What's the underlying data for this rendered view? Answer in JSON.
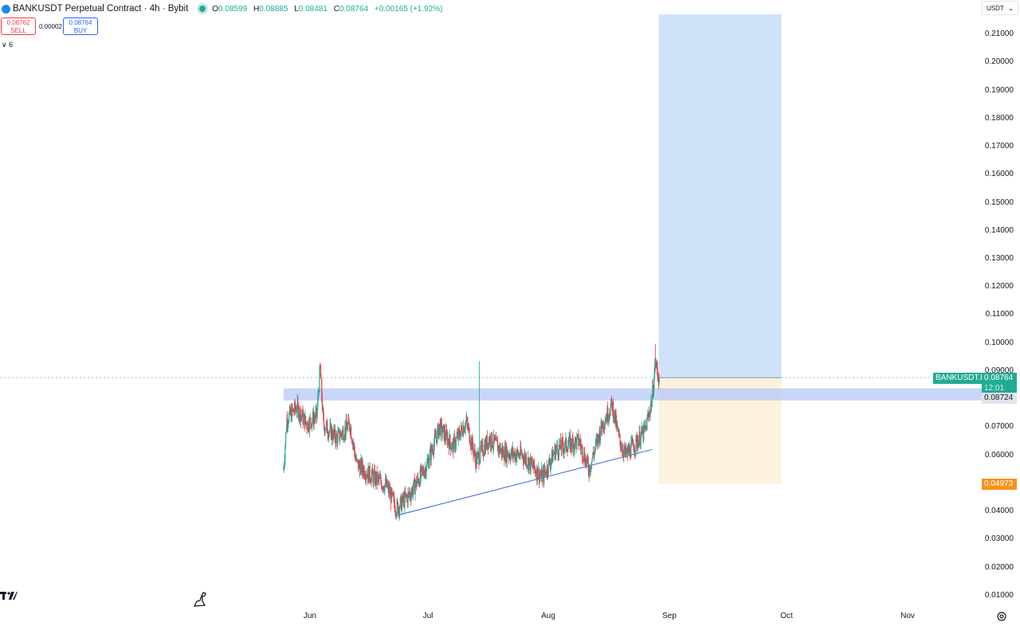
{
  "header": {
    "title": "BANKUSDT Perpetual Contract · 4h · Bybit",
    "open_k": "O",
    "open": "0.08599",
    "high_k": "H",
    "high": "0.08885",
    "low_k": "L",
    "low": "0.08481",
    "close_k": "C",
    "close": "0.08764",
    "change": "+0.00165 (+1.92%)"
  },
  "trade": {
    "sell_price": "0.08762",
    "sell_label": "SELL",
    "spread": "0.00002",
    "buy_price": "0.08764",
    "buy_label": "BUY"
  },
  "indicators_toggle": "6",
  "currency": "USDT",
  "axis": {
    "price_labels": [
      "0.21000",
      "0.20000",
      "0.19000",
      "0.18000",
      "0.17000",
      "0.16000",
      "0.15000",
      "0.14000",
      "0.13000",
      "0.12000",
      "0.11000",
      "0.10000",
      "0.09000",
      "0.07000",
      "0.06000",
      "0.04000",
      "0.03000",
      "0.02000",
      "0.01000"
    ],
    "time_labels": [
      "Jun",
      "Jul",
      "Aug",
      "Sep",
      "Oct",
      "Nov"
    ]
  },
  "tags": {
    "symbol": "BANKUSDT.P",
    "last_price": "0.08764",
    "countdown": "12:01",
    "zone_price": "0.08724",
    "stop_price": "0.04973"
  },
  "colors": {
    "up": "#22ab94",
    "down": "#f23645",
    "zone": "#b6c8f5",
    "target": "#cfe2fa",
    "stop": "#fbf1dd",
    "trendline": "#3d5bd9",
    "stop_tag": "#f7931a"
  },
  "chart_data": {
    "type": "candlestick",
    "timeframe": "4h",
    "approx_close_path": [
      [
        "2025-05-13",
        0.055
      ],
      [
        "2025-05-14",
        0.073
      ],
      [
        "2025-05-17",
        0.077
      ],
      [
        "2025-05-20",
        0.071
      ],
      [
        "2025-05-23",
        0.074
      ],
      [
        "2025-05-24",
        0.091
      ],
      [
        "2025-05-25",
        0.071
      ],
      [
        "2025-05-29",
        0.066
      ],
      [
        "2025-06-02",
        0.071
      ],
      [
        "2025-06-04",
        0.057
      ],
      [
        "2025-06-08",
        0.053
      ],
      [
        "2025-06-13",
        0.049
      ],
      [
        "2025-06-16",
        0.041
      ],
      [
        "2025-06-20",
        0.046
      ],
      [
        "2025-06-25",
        0.056
      ],
      [
        "2025-06-29",
        0.07
      ],
      [
        "2025-07-03",
        0.063
      ],
      [
        "2025-07-07",
        0.072
      ],
      [
        "2025-07-10",
        0.058
      ],
      [
        "2025-07-14",
        0.066
      ],
      [
        "2025-07-18",
        0.061
      ],
      [
        "2025-07-24",
        0.06
      ],
      [
        "2025-07-30",
        0.052
      ],
      [
        "2025-08-03",
        0.062
      ],
      [
        "2025-08-07",
        0.064
      ],
      [
        "2025-08-10",
        0.065
      ],
      [
        "2025-08-13",
        0.055
      ],
      [
        "2025-08-17",
        0.071
      ],
      [
        "2025-08-20",
        0.078
      ],
      [
        "2025-08-22",
        0.066
      ],
      [
        "2025-08-24",
        0.06
      ],
      [
        "2025-08-27",
        0.064
      ],
      [
        "2025-08-30",
        0.069
      ],
      [
        "2025-09-01",
        0.08
      ],
      [
        "2025-09-02",
        0.093
      ],
      [
        "2025-09-03",
        0.0876
      ]
    ],
    "spikes": [
      {
        "date": "2025-05-24",
        "high": 0.0915
      },
      {
        "date": "2025-07-11",
        "high": 0.0935
      },
      {
        "date": "2025-09-02",
        "high": 0.0995
      }
    ],
    "last": {
      "open": 0.08599,
      "high": 0.08885,
      "low": 0.08481,
      "close": 0.08764
    },
    "resistance_zone": [
      0.0795,
      0.0838
    ],
    "trendline": {
      "from": [
        "2025-06-16",
        0.0385
      ],
      "to": [
        "2025-09-01",
        0.062
      ]
    },
    "long_position": {
      "entry": 0.0876,
      "target": 0.217,
      "stop": 0.04973,
      "start": "2025-09-03",
      "end": "2025-10-10"
    },
    "ylim": [
      0.0,
      0.217
    ],
    "xlim": [
      "2025-04-14",
      "2025-11-17"
    ],
    "grid": false
  }
}
